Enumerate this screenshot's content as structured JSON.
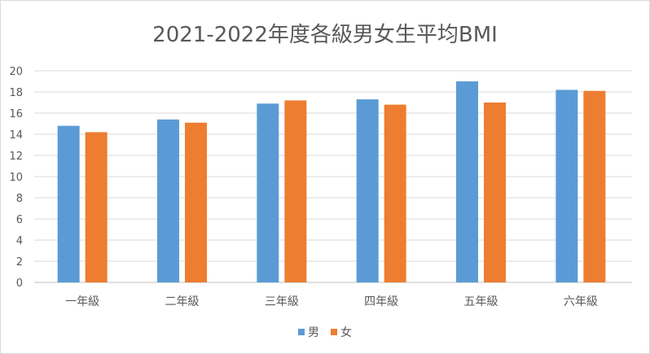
{
  "chart_data": {
    "type": "bar",
    "title": "2021-2022年度各級男女生平均BMI",
    "categories": [
      "一年級",
      "二年級",
      "三年級",
      "四年級",
      "五年級",
      "六年級"
    ],
    "series": [
      {
        "name": "男",
        "color": "#5b9bd5",
        "values": [
          14.8,
          15.4,
          16.9,
          17.3,
          19.0,
          18.2
        ]
      },
      {
        "name": "女",
        "color": "#ed7d31",
        "values": [
          14.2,
          15.1,
          17.2,
          16.8,
          17.0,
          18.1
        ]
      }
    ],
    "yticks": [
      "0",
      "2",
      "4",
      "6",
      "8",
      "10",
      "12",
      "14",
      "16",
      "18",
      "20"
    ],
    "ylim": [
      0,
      20
    ],
    "xlabel": "",
    "ylabel": "",
    "grid": true,
    "legend_position": "bottom"
  }
}
